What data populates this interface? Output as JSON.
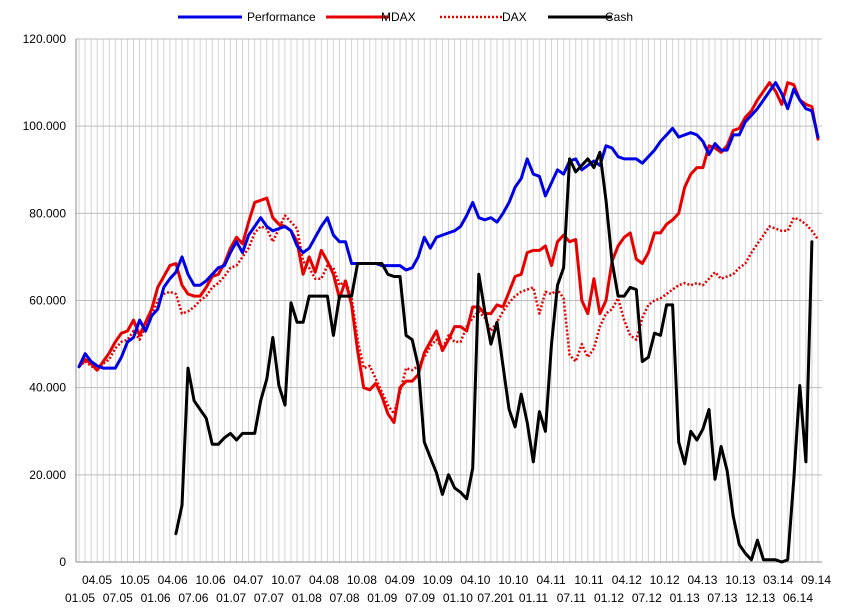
{
  "chart_data": {
    "type": "line",
    "title": "",
    "xlabel": "",
    "ylabel": "",
    "ylim": [
      0,
      120000
    ],
    "grid": true,
    "legend_position": "top",
    "y_ticks": [
      0,
      20000,
      40000,
      60000,
      80000,
      100000,
      120000
    ],
    "y_tick_labels": [
      "0",
      "20.000",
      "40.000",
      "60.000",
      "80.000",
      "100.000",
      "120.000"
    ],
    "x_tick_labels_upper": [
      "04.05",
      "10.05",
      "04.06",
      "10.06",
      "04.07",
      "10.07",
      "04.08",
      "10.08",
      "04.09",
      "10.09",
      "04.10",
      "10.10",
      "04.11",
      "10.11",
      "04.12",
      "10.12",
      "04.13",
      "10.13",
      "03.14",
      "09.14"
    ],
    "x_tick_labels_lower": [
      "01.05",
      "07.05",
      "01.06",
      "07.06",
      "01.07",
      "07.07",
      "01.08",
      "07.08",
      "01.09",
      "07.09",
      "01.10",
      "07.201",
      "01.11",
      "07.11",
      "01.12",
      "07.12",
      "01.13",
      "07.13",
      "12.13",
      "06.14"
    ],
    "series": [
      {
        "name": "Performance",
        "color": "#0000e6",
        "style": "solid",
        "values": [
          44800,
          47800,
          46000,
          45000,
          44500,
          44500,
          44500,
          47000,
          50500,
          51500,
          55500,
          53000,
          56500,
          58000,
          63000,
          65000,
          66500,
          70000,
          66000,
          63500,
          63500,
          64500,
          66000,
          67500,
          68000,
          71000,
          73500,
          71000,
          75000,
          77000,
          79000,
          77000,
          76000,
          76500,
          77000,
          76000,
          72500,
          71000,
          72000,
          74500,
          77000,
          79000,
          75000,
          73500,
          73500,
          68500,
          68500,
          68500,
          68500,
          68500,
          68000,
          68000,
          68000,
          68000,
          67000,
          67500,
          70000,
          74500,
          72000,
          74500,
          75000,
          75500,
          76000,
          77000,
          79500,
          82500,
          79000,
          78500,
          79000,
          78000,
          80000,
          82500,
          86000,
          88000,
          92500,
          89000,
          88500,
          84000,
          87000,
          90000,
          89000,
          92000,
          92500,
          90000,
          91000,
          92000,
          91000,
          95500,
          95000,
          93000,
          92500,
          92500,
          92500,
          91500,
          93000,
          94500,
          96500,
          98000,
          99500,
          97500,
          98000,
          98500,
          98000,
          96500,
          93500,
          96000,
          94500,
          94500,
          98000,
          98000,
          101000,
          102500,
          104000,
          106000,
          108000,
          110000,
          107500,
          104000,
          108500,
          106000,
          104000,
          103500,
          97500
        ]
      },
      {
        "name": "MDAX",
        "color": "#e60000",
        "style": "solid",
        "values": [
          44800,
          46500,
          45500,
          44000,
          46000,
          48000,
          50500,
          52500,
          53000,
          55500,
          52000,
          55000,
          58000,
          63000,
          65500,
          68000,
          68500,
          63500,
          61500,
          61000,
          61000,
          63000,
          65500,
          66000,
          68500,
          72000,
          74500,
          73000,
          78000,
          82500,
          83000,
          83500,
          79000,
          77500,
          77000,
          76000,
          73500,
          66000,
          70000,
          66500,
          71500,
          69000,
          66000,
          60500,
          64500,
          59000,
          48500,
          40000,
          39500,
          41000,
          38000,
          34000,
          32000,
          40000,
          41500,
          41500,
          43000,
          48000,
          50500,
          53000,
          48500,
          51000,
          54000,
          54000,
          53000,
          58500,
          58500,
          57000,
          57000,
          59000,
          58500,
          62000,
          65500,
          66000,
          71000,
          71500,
          71500,
          72500,
          68000,
          73500,
          75000,
          73500,
          74000,
          60000,
          57000,
          65000,
          57000,
          60000,
          69000,
          72500,
          74500,
          75500,
          69500,
          68500,
          71000,
          75500,
          75500,
          77500,
          78500,
          80000,
          86000,
          89000,
          90500,
          90500,
          95500,
          95000,
          94000,
          95500,
          99000,
          99500,
          102000,
          103500,
          106000,
          108000,
          110000,
          108000,
          105000,
          110000,
          109500,
          106000,
          105000,
          104500,
          97000
        ]
      },
      {
        "name": "DAX",
        "color": "#e60000",
        "style": "dotted",
        "values": [
          44800,
          46000,
          45000,
          44000,
          45500,
          46500,
          49000,
          50500,
          51000,
          53000,
          51000,
          54000,
          56500,
          60000,
          61500,
          62000,
          61500,
          57000,
          57500,
          58500,
          60000,
          61000,
          63000,
          64000,
          65500,
          67500,
          68000,
          70000,
          72000,
          75500,
          77000,
          76500,
          73500,
          76500,
          79500,
          78000,
          76500,
          69000,
          67500,
          65000,
          65000,
          68000,
          67500,
          63500,
          64500,
          60500,
          51000,
          44500,
          45000,
          42000,
          39000,
          36000,
          34000,
          39000,
          44500,
          44000,
          45000,
          47000,
          49500,
          51000,
          49000,
          52000,
          50500,
          50500,
          54000,
          56000,
          57500,
          56000,
          53000,
          55000,
          57500,
          59500,
          61000,
          62000,
          62500,
          63000,
          57000,
          62000,
          61500,
          62500,
          60500,
          47500,
          46000,
          50000,
          47000,
          49000,
          54000,
          57000,
          58000,
          60500,
          55500,
          52000,
          51000,
          56000,
          59000,
          60000,
          60500,
          61500,
          62500,
          63500,
          64000,
          63500,
          64000,
          63500,
          65000,
          66500,
          65000,
          65500,
          66000,
          67500,
          68500,
          71000,
          73000,
          75000,
          77000,
          76500,
          76000,
          76000,
          79000,
          78500,
          77500,
          76000,
          74000
        ]
      },
      {
        "name": "Cash",
        "color": "#000000",
        "style": "solid",
        "values": [
          null,
          null,
          null,
          null,
          null,
          null,
          null,
          null,
          null,
          null,
          null,
          null,
          null,
          null,
          null,
          null,
          6500,
          13000,
          44500,
          37000,
          35000,
          33000,
          27000,
          27000,
          28500,
          29500,
          28000,
          29500,
          29500,
          29500,
          37000,
          42000,
          51500,
          40500,
          36000,
          59500,
          55000,
          55000,
          61000,
          61000,
          61000,
          61000,
          52000,
          61000,
          61000,
          61000,
          68500,
          68500,
          68500,
          68500,
          68500,
          66000,
          65500,
          65500,
          52000,
          51000,
          45000,
          27500,
          24000,
          20500,
          15500,
          20000,
          17000,
          16000,
          14500,
          21500,
          66000,
          57500,
          50000,
          55000,
          45000,
          35000,
          31000,
          38500,
          32000,
          23000,
          34500,
          30000,
          50000,
          63500,
          67500,
          92500,
          89500,
          91000,
          92500,
          90500,
          94000,
          83000,
          69000,
          61000,
          61000,
          63000,
          62500,
          46000,
          47000,
          52500,
          52000,
          59000,
          59000,
          27500,
          22500,
          30000,
          28000,
          30500,
          35000,
          19000,
          26500,
          21000,
          10500,
          4000,
          2000,
          500,
          5000,
          500,
          500,
          500,
          0,
          500,
          19000,
          40500,
          23000,
          73500,
          null
        ]
      }
    ]
  }
}
